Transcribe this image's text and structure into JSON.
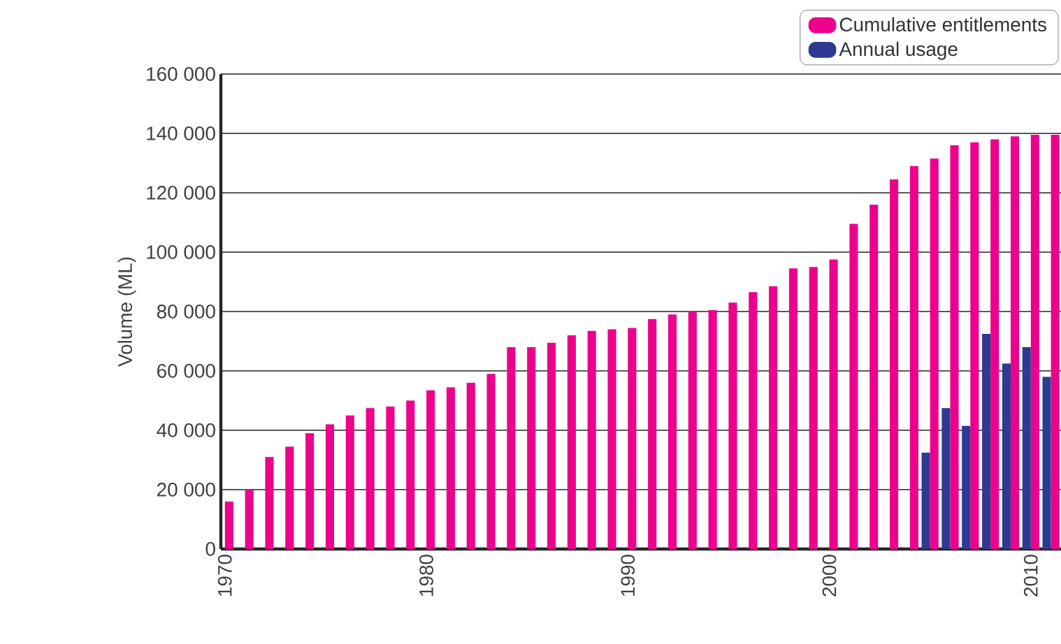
{
  "chart_data": {
    "type": "bar",
    "ylabel": "Volume (ML)",
    "x": [
      1970,
      1971,
      1972,
      1973,
      1974,
      1975,
      1976,
      1977,
      1978,
      1979,
      1980,
      1981,
      1982,
      1983,
      1984,
      1985,
      1986,
      1987,
      1988,
      1989,
      1990,
      1991,
      1992,
      1993,
      1994,
      1995,
      1996,
      1997,
      1998,
      1999,
      2000,
      2001,
      2002,
      2003,
      2004,
      2005,
      2006,
      2007,
      2008,
      2009,
      2010,
      2011
    ],
    "series": [
      {
        "name": "Cumulative entitlements",
        "color": "#ec008c",
        "values": [
          16000,
          20000,
          31000,
          34500,
          39000,
          42000,
          45000,
          47500,
          48000,
          50000,
          53500,
          54500,
          56000,
          59000,
          68000,
          68000,
          69500,
          72000,
          73500,
          74000,
          74500,
          77500,
          79000,
          80000,
          80500,
          83000,
          86500,
          88500,
          94500,
          95000,
          97500,
          109500,
          116000,
          124500,
          129000,
          131500,
          136000,
          137000,
          138000,
          139000,
          139500,
          139500
        ]
      },
      {
        "name": "Annual usage",
        "color": "#2e3a8f",
        "values": [
          null,
          null,
          null,
          null,
          null,
          null,
          null,
          null,
          null,
          null,
          null,
          null,
          null,
          null,
          null,
          null,
          null,
          null,
          null,
          null,
          null,
          null,
          null,
          null,
          null,
          null,
          null,
          null,
          null,
          null,
          null,
          null,
          null,
          null,
          null,
          32500,
          47500,
          41500,
          72500,
          62500,
          68000,
          58000
        ]
      }
    ],
    "xlim": [
      1969.8,
      2011.5
    ],
    "xticks": [
      1970,
      1980,
      1990,
      2000,
      2010
    ],
    "ylim": [
      0,
      160000
    ],
    "yticks": [
      {
        "value": 0,
        "label": "0"
      },
      {
        "value": 20000,
        "label": "20 000"
      },
      {
        "value": 40000,
        "label": "40 000"
      },
      {
        "value": 60000,
        "label": "60 000"
      },
      {
        "value": 80000,
        "label": "80 000"
      },
      {
        "value": 100000,
        "label": "100 000"
      },
      {
        "value": 120000,
        "label": "120 000"
      },
      {
        "value": 140000,
        "label": "140 000"
      },
      {
        "value": 160000,
        "label": "160 000"
      }
    ],
    "grid": "y",
    "legend": "top right"
  }
}
